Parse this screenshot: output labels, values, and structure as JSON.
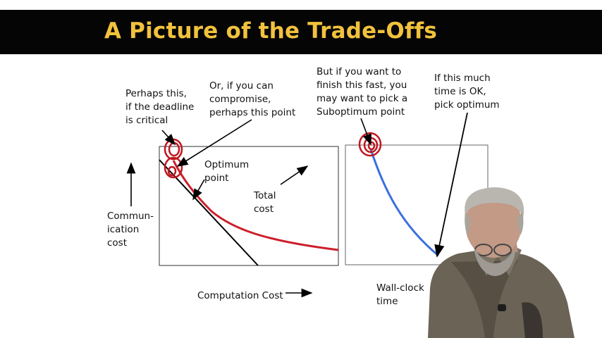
{
  "slide": {
    "title": "A Picture of the Trade-Offs"
  },
  "labels": {
    "perhaps_this": "Perhaps this,\nif the deadline\nis critical",
    "compromise": "Or, if you can\ncompromise,\nperhaps this point",
    "optimum_point": "Optimum\npoint",
    "total_cost": "Total\ncost",
    "communication_cost": "Commun-\nication\ncost",
    "computation_cost": "Computation Cost",
    "fast_finish": "But if you want to\nfinish this fast, you\nmay want to pick a\nSuboptimum point",
    "time_ok": "If this much\ntime is OK,\npick optimum",
    "wall_clock": "Wall-clock\ntime"
  },
  "colors": {
    "title_bg": "#050505",
    "title_text": "#f2c23c",
    "cost_curve": "#cc1f2a",
    "time_curve": "#3b6fe0",
    "circle_marks": "#c0161f",
    "arrows": "#000000"
  }
}
